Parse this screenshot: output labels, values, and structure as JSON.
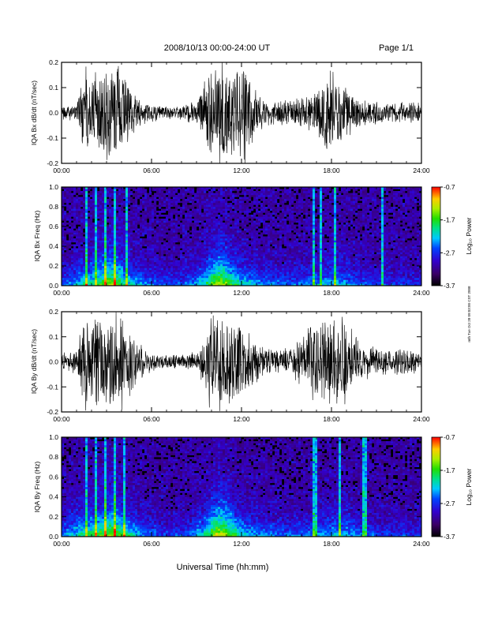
{
  "header": {
    "title": "2008/10/13  00:00-24:00 UT",
    "page": "Page 1/1"
  },
  "footer": {
    "xlabel": "Universal Time (hh:mm)"
  },
  "side_note": "mth Tue Oct 28 09:03:00 CST 2008",
  "chart_data": [
    {
      "type": "line",
      "ylabel": "IQA Bx dB/dt (nT/sec)",
      "xlim": [
        0,
        24
      ],
      "ylim": [
        -0.2,
        0.2
      ],
      "xticks": [
        "00:00",
        "06:00",
        "12:00",
        "18:00",
        "24:00"
      ],
      "yticks": [
        "-0.2",
        "-0.1",
        "0.0",
        "0.1",
        "0.2"
      ],
      "envelope": {
        "x_hours": [
          0,
          1,
          1.6,
          2.0,
          2.5,
          3.0,
          3.4,
          3.8,
          4.5,
          5.2,
          6,
          7,
          8,
          9,
          9.6,
          10.1,
          10.6,
          11.2,
          11.8,
          12.2,
          12.8,
          13.5,
          14.5,
          15.5,
          16.3,
          17.0,
          17.5,
          18.0,
          18.5,
          19.0,
          20,
          21,
          22,
          23,
          24
        ],
        "amplitude": [
          0.03,
          0.04,
          0.22,
          0.14,
          0.22,
          0.22,
          0.22,
          0.22,
          0.12,
          0.06,
          0.04,
          0.03,
          0.03,
          0.06,
          0.14,
          0.18,
          0.22,
          0.22,
          0.22,
          0.22,
          0.14,
          0.06,
          0.05,
          0.06,
          0.08,
          0.1,
          0.14,
          0.2,
          0.14,
          0.1,
          0.06,
          0.05,
          0.04,
          0.05,
          0.04
        ]
      }
    },
    {
      "type": "heatmap",
      "ylabel": "IQA Bx Freq (Hz)",
      "xlim": [
        0,
        24
      ],
      "ylim": [
        0.0,
        1.0
      ],
      "xticks": [
        "00:00",
        "06:00",
        "12:00",
        "18:00",
        "24:00"
      ],
      "yticks": [
        "0.0",
        "0.2",
        "0.4",
        "0.6",
        "0.8",
        "1.0"
      ],
      "colorbar": {
        "label": "Log₁₀ Power",
        "ticks": [
          "-0.7",
          "-1.7",
          "-2.7",
          "-3.7"
        ],
        "range": [
          -3.7,
          -0.7
        ]
      },
      "activity": {
        "x_hours": [
          0,
          1.5,
          2.2,
          3.0,
          3.5,
          4.3,
          5.5,
          7,
          8.5,
          9.5,
          10.2,
          10.6,
          11.2,
          12.0,
          13.5,
          15,
          16.5,
          18,
          19,
          20,
          21,
          22.5,
          24
        ],
        "level": [
          0.25,
          0.55,
          0.6,
          0.8,
          0.85,
          0.55,
          0.35,
          0.25,
          0.3,
          0.55,
          0.8,
          0.9,
          0.75,
          0.5,
          0.35,
          0.3,
          0.35,
          0.45,
          0.4,
          0.3,
          0.25,
          0.25,
          0.2
        ],
        "streak_hours": [
          1.6,
          2.3,
          2.9,
          3.55,
          4.3,
          16.8,
          17.3,
          18.2,
          21.4
        ]
      }
    },
    {
      "type": "line",
      "ylabel": "IQA By dB/dt (nT/sec)",
      "xlim": [
        0,
        24
      ],
      "ylim": [
        -0.2,
        0.2
      ],
      "xticks": [
        "00:00",
        "06:00",
        "12:00",
        "18:00",
        "24:00"
      ],
      "yticks": [
        "-0.2",
        "-0.1",
        "0.0",
        "0.1",
        "0.2"
      ],
      "envelope": {
        "x_hours": [
          0,
          1,
          1.5,
          2.0,
          2.5,
          3.0,
          3.5,
          4.0,
          4.6,
          5.2,
          6,
          7,
          8,
          9,
          9.6,
          10.0,
          10.5,
          11.2,
          11.8,
          12.2,
          12.8,
          13.5,
          14.5,
          15.5,
          16.2,
          16.8,
          17.5,
          18.0,
          18.5,
          19.2,
          20,
          21,
          22,
          23,
          24
        ],
        "amplitude": [
          0.04,
          0.05,
          0.22,
          0.16,
          0.22,
          0.22,
          0.22,
          0.22,
          0.14,
          0.08,
          0.04,
          0.03,
          0.03,
          0.05,
          0.12,
          0.22,
          0.22,
          0.22,
          0.22,
          0.16,
          0.1,
          0.06,
          0.05,
          0.07,
          0.12,
          0.18,
          0.2,
          0.22,
          0.22,
          0.16,
          0.08,
          0.06,
          0.05,
          0.06,
          0.05
        ]
      }
    },
    {
      "type": "heatmap",
      "ylabel": "IQA By Freq (Hz)",
      "xlim": [
        0,
        24
      ],
      "ylim": [
        0.0,
        1.0
      ],
      "xticks": [
        "00:00",
        "06:00",
        "12:00",
        "18:00",
        "24:00"
      ],
      "yticks": [
        "0.0",
        "0.2",
        "0.4",
        "0.6",
        "0.8",
        "1.0"
      ],
      "colorbar": {
        "label": "Log₁₀ Power",
        "ticks": [
          "-0.7",
          "-1.7",
          "-2.7",
          "-3.7"
        ],
        "range": [
          -3.7,
          -0.7
        ]
      },
      "activity": {
        "x_hours": [
          0,
          1.5,
          2.2,
          3.0,
          3.5,
          4.3,
          5.5,
          7,
          8.5,
          9.5,
          10.2,
          10.6,
          11.2,
          12.0,
          13.5,
          15,
          16.5,
          18,
          19,
          20,
          21,
          22.5,
          24
        ],
        "level": [
          0.35,
          0.6,
          0.65,
          0.8,
          0.85,
          0.6,
          0.35,
          0.25,
          0.3,
          0.55,
          0.85,
          0.95,
          0.8,
          0.5,
          0.35,
          0.3,
          0.35,
          0.45,
          0.45,
          0.3,
          0.25,
          0.25,
          0.2
        ],
        "streak_hours": [
          1.6,
          2.3,
          2.9,
          3.55,
          4.2,
          16.9,
          18.6,
          20.2
        ]
      }
    }
  ]
}
